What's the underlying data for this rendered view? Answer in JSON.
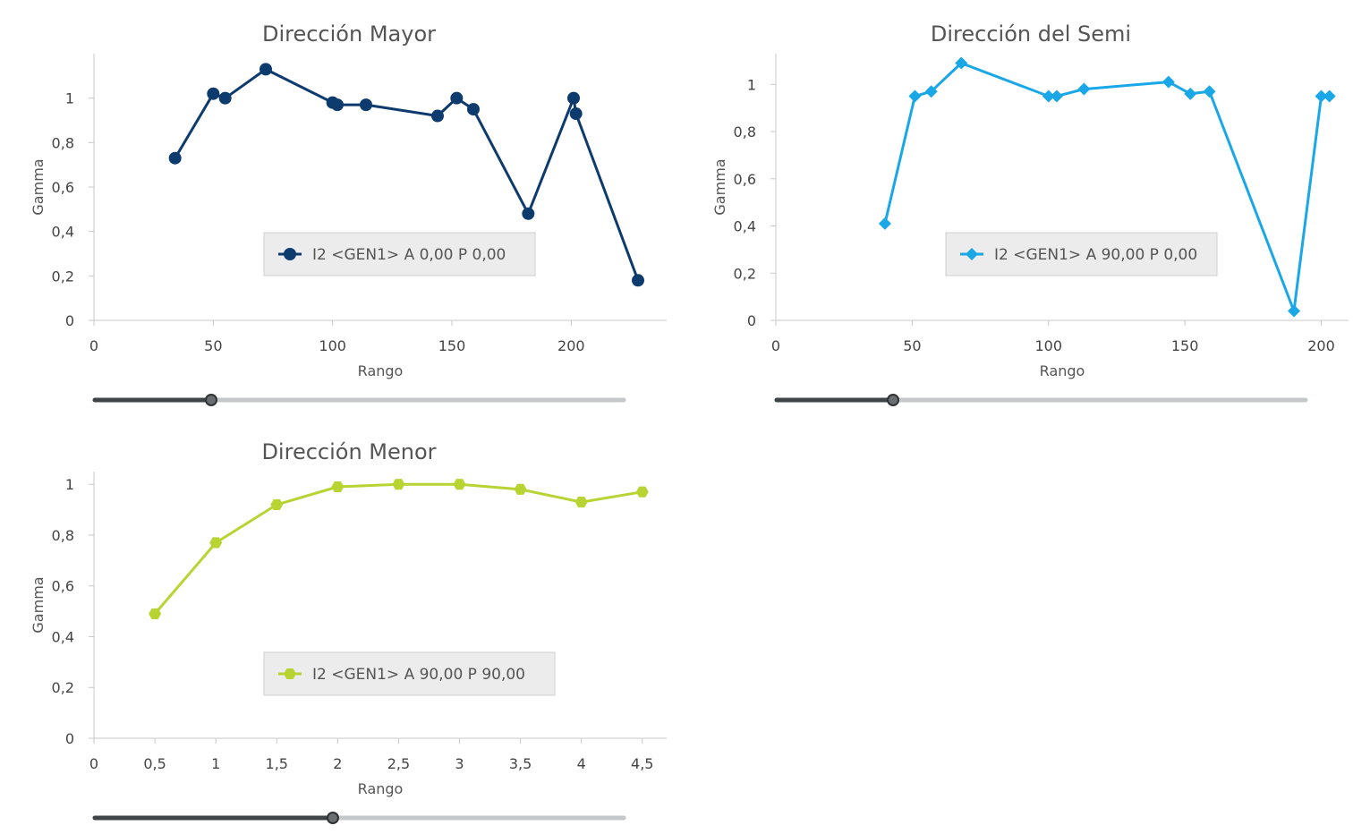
{
  "chart_data": [
    {
      "type": "line",
      "title": "Dirección Mayor",
      "xlabel": "Rango",
      "ylabel": "Gamma",
      "xlim": [
        0,
        240
      ],
      "ylim": [
        0,
        1.2
      ],
      "xticks": [
        0,
        50,
        100,
        150,
        200
      ],
      "yticks": [
        0,
        0.2,
        0.4,
        0.6,
        0.8,
        1
      ],
      "xtick_labels": [
        "0",
        "50",
        "100",
        "150",
        "200"
      ],
      "ytick_labels": [
        "0",
        "0,2",
        "0,4",
        "0,6",
        "0,8",
        "1"
      ],
      "marker": "circle",
      "color": "#0d3b6e",
      "legend_placement": "center-right",
      "slider_value": 0.22,
      "series": [
        {
          "name": "I2 <GEN1> A 0,00 P 0,00",
          "x": [
            34,
            50,
            55,
            72,
            100,
            102,
            114,
            144,
            152,
            159,
            182,
            201,
            202,
            228
          ],
          "y": [
            0.73,
            1.02,
            1.0,
            1.13,
            0.98,
            0.97,
            0.97,
            0.92,
            1.0,
            0.95,
            0.48,
            1.0,
            0.93,
            0.18
          ]
        }
      ]
    },
    {
      "type": "line",
      "title": "Dirección del Semi",
      "xlabel": "Rango",
      "ylabel": "Gamma",
      "xlim": [
        0,
        210
      ],
      "ylim": [
        0,
        1.13
      ],
      "xticks": [
        0,
        50,
        100,
        150,
        200
      ],
      "yticks": [
        0,
        0.2,
        0.4,
        0.6,
        0.8,
        1
      ],
      "xtick_labels": [
        "0",
        "50",
        "100",
        "150",
        "200"
      ],
      "ytick_labels": [
        "0",
        "0,2",
        "0,4",
        "0,6",
        "0,8",
        "1"
      ],
      "marker": "diamond",
      "color": "#1aa7e8",
      "legend_placement": "center-right",
      "slider_value": 0.22,
      "series": [
        {
          "name": "I2 <GEN1> A 90,00 P 0,00",
          "x": [
            40,
            51,
            57,
            68,
            100,
            103,
            113,
            144,
            152,
            159,
            190,
            200,
            203
          ],
          "y": [
            0.41,
            0.95,
            0.97,
            1.09,
            0.95,
            0.95,
            0.98,
            1.01,
            0.96,
            0.97,
            0.04,
            0.95,
            0.95
          ]
        }
      ]
    },
    {
      "type": "line",
      "title": "Dirección Menor",
      "xlabel": "Rango",
      "ylabel": "Gamma",
      "xlim": [
        0,
        4.7
      ],
      "ylim": [
        0,
        1.05
      ],
      "xticks": [
        0,
        0.5,
        1,
        1.5,
        2,
        2.5,
        3,
        3.5,
        4,
        4.5
      ],
      "yticks": [
        0,
        0.2,
        0.4,
        0.6,
        0.8,
        1
      ],
      "xtick_labels": [
        "0",
        "0,5",
        "1",
        "1,5",
        "2",
        "2,5",
        "3",
        "3,5",
        "4",
        "4,5"
      ],
      "ytick_labels": [
        "0",
        "0,2",
        "0,4",
        "0,6",
        "0,8",
        "1"
      ],
      "marker": "hexagon",
      "color": "#b7d433",
      "legend_placement": "center-right",
      "slider_value": 0.45,
      "series": [
        {
          "name": "I2 <GEN1> A 90,00 P 90,00",
          "x": [
            0.5,
            1,
            1.5,
            2,
            2.5,
            3,
            3.5,
            4,
            4.5
          ],
          "y": [
            0.49,
            0.77,
            0.92,
            0.99,
            1.0,
            1.0,
            0.98,
            0.93,
            0.97
          ]
        }
      ]
    }
  ]
}
